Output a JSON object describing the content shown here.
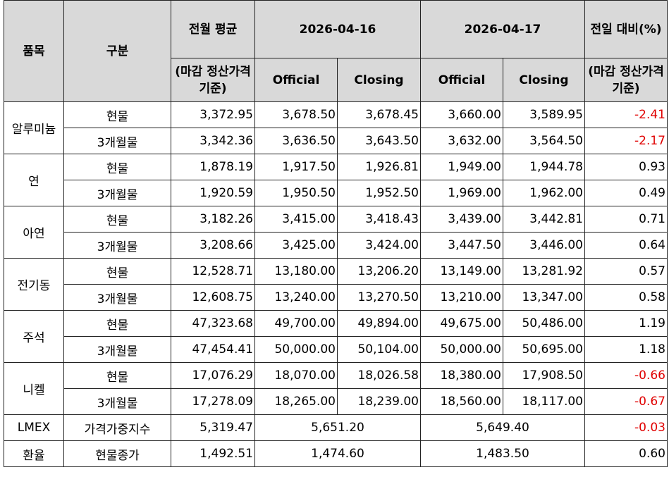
{
  "header": {
    "item": "품목",
    "kind": "구분",
    "monthly_avg": {
      "label": "전월 평균",
      "basis": "(마감 정산가격 기준)"
    },
    "dates": [
      {
        "date": "2026-04-16",
        "columns": [
          "Official",
          "Closing"
        ]
      },
      {
        "date": "2026-04-17",
        "columns": [
          "Official",
          "Closing"
        ]
      }
    ],
    "change": {
      "label": "전일 대비(%)",
      "basis": "(마감 정산가격 기준)"
    }
  },
  "groups": [
    {
      "item": "알루미늄",
      "rows": [
        {
          "kind": "현물",
          "values": [
            "3,372.95",
            "3,678.50",
            "3,678.45",
            "3,660.00",
            "3,589.95",
            "-2.41"
          ]
        },
        {
          "kind": "3개월물",
          "values": [
            "3,342.36",
            "3,636.50",
            "3,643.50",
            "3,632.00",
            "3,564.50",
            "-2.17"
          ]
        }
      ]
    },
    {
      "item": "연",
      "rows": [
        {
          "kind": "현물",
          "values": [
            "1,878.19",
            "1,917.50",
            "1,926.81",
            "1,949.00",
            "1,944.78",
            "0.93"
          ]
        },
        {
          "kind": "3개월물",
          "values": [
            "1,920.59",
            "1,950.50",
            "1,952.50",
            "1,969.00",
            "1,962.00",
            "0.49"
          ]
        }
      ]
    },
    {
      "item": "아연",
      "rows": [
        {
          "kind": "현물",
          "values": [
            "3,182.26",
            "3,415.00",
            "3,418.43",
            "3,439.00",
            "3,442.81",
            "0.71"
          ]
        },
        {
          "kind": "3개월물",
          "values": [
            "3,208.66",
            "3,425.00",
            "3,424.00",
            "3,447.50",
            "3,446.00",
            "0.64"
          ]
        }
      ]
    },
    {
      "item": "전기동",
      "rows": [
        {
          "kind": "현물",
          "values": [
            "12,528.71",
            "13,180.00",
            "13,206.20",
            "13,149.00",
            "13,281.92",
            "0.57"
          ]
        },
        {
          "kind": "3개월물",
          "values": [
            "12,608.75",
            "13,240.00",
            "13,270.50",
            "13,210.00",
            "13,347.00",
            "0.58"
          ]
        }
      ]
    },
    {
      "item": "주석",
      "rows": [
        {
          "kind": "현물",
          "values": [
            "47,323.68",
            "49,700.00",
            "49,894.00",
            "49,675.00",
            "50,486.00",
            "1.19"
          ]
        },
        {
          "kind": "3개월물",
          "values": [
            "47,454.41",
            "50,000.00",
            "50,104.00",
            "50,000.00",
            "50,695.00",
            "1.18"
          ]
        }
      ]
    },
    {
      "item": "니켈",
      "rows": [
        {
          "kind": "현물",
          "values": [
            "17,076.29",
            "18,070.00",
            "18,026.58",
            "18,380.00",
            "17,908.50",
            "-0.66"
          ]
        },
        {
          "kind": "3개월물",
          "values": [
            "17,278.09",
            "18,265.00",
            "18,239.00",
            "18,560.00",
            "18,117.00",
            "-0.67"
          ]
        }
      ]
    },
    {
      "item": "LMEX",
      "rows": [
        {
          "kind": "가격가중지수",
          "values": [
            "5,319.47",
            "5,651.20",
            "5,649.40",
            "-0.03"
          ]
        }
      ]
    },
    {
      "item": "환율",
      "rows": [
        {
          "kind": "현물종가",
          "values": [
            "1,492.51",
            "1,474.60",
            "1,483.50",
            "0.60"
          ]
        }
      ]
    }
  ]
}
